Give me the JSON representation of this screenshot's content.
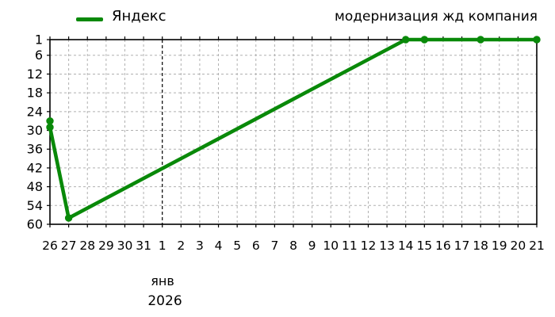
{
  "header": {
    "legend": {
      "series_label": "Яндекс",
      "swatch_color": "#098909"
    },
    "title": "модернизация жд компания"
  },
  "chart_data": {
    "type": "line",
    "title": "модернизация жд компания",
    "legend_entries": [
      "Яндекс"
    ],
    "legend_position": "top-left",
    "x_categories": [
      "26",
      "27",
      "28",
      "29",
      "30",
      "31",
      "1",
      "2",
      "3",
      "4",
      "5",
      "6",
      "7",
      "8",
      "9",
      "10",
      "11",
      "12",
      "13",
      "14",
      "15",
      "16",
      "17",
      "18",
      "19",
      "20",
      "21"
    ],
    "x_month_boundary_index": 6,
    "x_month_label": "янв",
    "x_year_label": "2026",
    "y_ticks": [
      1,
      6,
      12,
      18,
      24,
      30,
      36,
      42,
      48,
      54,
      60
    ],
    "y_range": [
      1,
      60
    ],
    "y_axis_inverted": true,
    "grid": {
      "horizontal": true,
      "vertical": true,
      "color": "#b0b0b0"
    },
    "month_boundary_line_color": "#000000",
    "series": [
      {
        "name": "Яндекс",
        "color": "#098909",
        "marker": "circle",
        "points": [
          {
            "date": "26 дек",
            "x_index": 0,
            "position": 27
          },
          {
            "date": "26 дек",
            "x_index": 0,
            "position": 29
          },
          {
            "date": "27 дек",
            "x_index": 1,
            "position": 58
          },
          {
            "date": "14 янв",
            "x_index": 19,
            "position": 1
          },
          {
            "date": "15 янв",
            "x_index": 20,
            "position": 1
          },
          {
            "date": "18 янв",
            "x_index": 23,
            "position": 1
          },
          {
            "date": "21 янв",
            "x_index": 26,
            "position": 1
          }
        ]
      }
    ]
  },
  "colors": {
    "background": "#ffffff",
    "frame": "#000000",
    "text": "#000000",
    "gridline": "#b0b0b0",
    "series_green": "#098909"
  }
}
